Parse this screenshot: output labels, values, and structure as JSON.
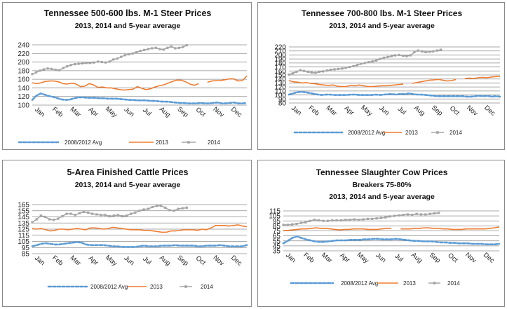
{
  "colors": {
    "avg": "#5b9bd5",
    "y2013": "#ed7d31",
    "y2014": "#a5a5a5"
  },
  "months": [
    "Jan",
    "Feb",
    "Mar",
    "Apr",
    "May",
    "Jun",
    "Jul",
    "Aug",
    "Sep",
    "Oct",
    "Nov",
    "Dec"
  ],
  "chart_data": [
    {
      "type": "line",
      "title": "Tennessee 500-600 lbs. M-1 Steer Prices",
      "subtitle": "2013, 2014 and 5-year average",
      "ylim": [
        100,
        240
      ],
      "yticks": [
        100,
        120,
        140,
        160,
        180,
        200,
        220,
        240
      ],
      "grid": true,
      "legend": "bottom",
      "legend_labels": [
        "2008/2012 Avg",
        "2013",
        "2014"
      ],
      "series": [
        {
          "name": "2008/2012 Avg",
          "style": "dashed",
          "values": [
            112,
            122,
            127,
            124,
            121,
            119,
            116,
            113,
            112,
            113,
            116,
            118,
            118,
            117,
            117,
            117,
            116,
            116,
            115,
            115,
            115,
            114,
            113,
            112,
            112,
            111,
            111,
            111,
            110,
            110,
            109,
            108,
            108,
            107,
            106,
            105,
            105,
            104,
            104,
            104,
            105,
            104,
            104,
            105,
            106,
            104,
            104,
            105,
            106,
            104,
            104,
            105
          ]
        },
        {
          "name": "2013",
          "style": "solid",
          "values": [
            152,
            150,
            152,
            155,
            156,
            156,
            154,
            150,
            149,
            151,
            149,
            143,
            144,
            150,
            147,
            141,
            142,
            140,
            140,
            138,
            136,
            135,
            136,
            137,
            143,
            139,
            136,
            138,
            142,
            145,
            147,
            151,
            155,
            158,
            158,
            154,
            149,
            146,
            150,
            null,
            153,
            156,
            157,
            157,
            159,
            161,
            161,
            156,
            157,
            168
          ]
        },
        {
          "name": "2014",
          "style": "solid",
          "values": [
            172,
            176,
            180,
            183,
            185,
            184,
            182,
            181,
            186,
            190,
            193,
            195,
            196,
            197,
            198,
            198,
            199,
            201,
            200,
            199,
            201,
            206,
            208,
            212,
            216,
            218,
            220,
            223,
            226,
            228,
            230,
            232,
            233,
            230,
            229,
            233,
            236,
            232,
            233,
            235,
            239
          ]
        }
      ]
    },
    {
      "type": "line",
      "title": "Tennessee 700-800 lbs. M-1 Steer Prices",
      "subtitle": "2013, 2014 and 5-year average",
      "ylim": [
        80,
        220
      ],
      "yticks": [
        80,
        90,
        100,
        110,
        120,
        130,
        140,
        150,
        160,
        170,
        180,
        190,
        200,
        210,
        220
      ],
      "grid": true,
      "legend": "bottom",
      "legend_labels": [
        "2008/2012 Avg",
        "2013",
        "2014"
      ],
      "series": [
        {
          "name": "2008/2012 Avg",
          "style": "dashed",
          "values": [
            101,
            104,
            107,
            108,
            107,
            105,
            103,
            101,
            100,
            101,
            101,
            100,
            100,
            100,
            100,
            101,
            101,
            100,
            100,
            100,
            100,
            101,
            100,
            101,
            102,
            102,
            101,
            103,
            102,
            104,
            102,
            101,
            101,
            100,
            99,
            98,
            97,
            97,
            97,
            97,
            97,
            97,
            97,
            96,
            96,
            97,
            98,
            97,
            98,
            96,
            97,
            96
          ]
        },
        {
          "name": "2013",
          "style": "solid",
          "values": [
            136,
            133,
            132,
            130,
            131,
            129,
            128,
            126,
            125,
            124,
            125,
            122,
            121,
            121,
            124,
            123,
            125,
            123,
            121,
            121,
            122,
            123,
            123,
            124,
            125,
            126,
            127,
            null,
            129,
            131,
            133,
            135,
            137,
            138,
            139,
            137,
            135,
            136,
            139,
            null,
            141,
            142,
            141,
            143,
            144,
            143,
            145,
            146,
            147
          ]
        },
        {
          "name": "2014",
          "style": "solid",
          "values": [
            151,
            154,
            158,
            162,
            160,
            158,
            156,
            155,
            158,
            159,
            161,
            163,
            164,
            165,
            166,
            168,
            170,
            172,
            175,
            178,
            180,
            182,
            184,
            186,
            190,
            193,
            195,
            197,
            199,
            200,
            198,
            197,
            199,
            207,
            211,
            209,
            207,
            208,
            209,
            211,
            213
          ]
        }
      ]
    },
    {
      "type": "line",
      "title": "5-Area Finished Cattle Prices",
      "subtitle": "2013, 2014 and 5-year average",
      "ylim": [
        85,
        165
      ],
      "yticks": [
        85,
        95,
        105,
        115,
        125,
        135,
        145,
        155,
        165
      ],
      "grid": true,
      "legend": "bottom",
      "legend_labels": [
        "2008/2012 Avg",
        "2013",
        "2014"
      ],
      "series": [
        {
          "name": "2008/2012 Avg",
          "style": "dashed",
          "values": [
            97,
            99,
            101,
            102,
            101,
            100,
            100,
            101,
            102,
            103,
            104,
            103,
            100,
            99,
            99,
            99,
            99,
            98,
            97,
            97,
            96,
            96,
            96,
            96,
            97,
            98,
            97,
            97,
            97,
            98,
            98,
            98,
            99,
            98,
            98,
            98,
            98,
            97,
            97,
            98,
            98,
            98,
            99,
            98,
            97,
            97,
            97,
            97,
            99
          ]
        },
        {
          "name": "2013",
          "style": "solid",
          "values": [
            126,
            125,
            126,
            124,
            122,
            123,
            125,
            125,
            124,
            125,
            126,
            125,
            124,
            127,
            127,
            126,
            125,
            126,
            128,
            127,
            126,
            125,
            124,
            124,
            124,
            123,
            123,
            122,
            121,
            120,
            120,
            122,
            122,
            123,
            124,
            124,
            124,
            123,
            125,
            124,
            127,
            131,
            131,
            131,
            130,
            131,
            132,
            130,
            129
          ]
        },
        {
          "name": "2014",
          "style": "solid",
          "values": [
            136,
            141,
            147,
            145,
            141,
            140,
            142,
            146,
            150,
            150,
            148,
            151,
            153,
            152,
            150,
            149,
            148,
            148,
            146,
            147,
            148,
            146,
            147,
            150,
            152,
            155,
            157,
            158,
            161,
            163,
            163,
            160,
            156,
            155,
            158,
            159,
            160
          ]
        }
      ]
    },
    {
      "type": "line",
      "title": "Tennessee Slaughter Cow Prices",
      "subtitle": "Breakers 75-80%",
      "subtitle2": "2013, 2014 and 5-year average",
      "ylim": [
        35,
        115
      ],
      "yticks": [
        35,
        45,
        55,
        65,
        75,
        85,
        95,
        105,
        115
      ],
      "grid": true,
      "legend": "bottom",
      "legend_labels": [
        "2008/2012 Avg",
        "2013",
        "2014"
      ],
      "series": [
        {
          "name": "2008/2012 Avg",
          "style": "dashed",
          "values": [
            50,
            55,
            61,
            64,
            61,
            58,
            56,
            54,
            53,
            53,
            54,
            55,
            56,
            56,
            56,
            57,
            57,
            57,
            58,
            58,
            59,
            59,
            58,
            58,
            58,
            59,
            58,
            57,
            56,
            55,
            55,
            54,
            54,
            54,
            53,
            52,
            52,
            51,
            51,
            50,
            50,
            50,
            49,
            49,
            49,
            48,
            48,
            48,
            49
          ]
        },
        {
          "name": "2013",
          "style": "solid",
          "values": [
            76,
            76,
            77,
            78,
            79,
            79,
            80,
            81,
            80,
            80,
            79,
            78,
            77,
            78,
            78,
            79,
            79,
            79,
            78,
            78,
            78,
            79,
            80,
            80,
            null,
            79,
            79,
            79,
            80,
            80,
            81,
            81,
            80,
            80,
            79,
            79,
            78,
            78,
            78,
            79,
            79,
            79,
            79,
            79,
            80,
            81,
            83
          ]
        },
        {
          "name": "2014",
          "style": "solid",
          "values": [
            87,
            87,
            88,
            89,
            91,
            92,
            95,
            97,
            96,
            95,
            95,
            96,
            96,
            96,
            97,
            97,
            98,
            97,
            98,
            99,
            99,
            100,
            101,
            102,
            104,
            105,
            106,
            107,
            108,
            107,
            109,
            108,
            108,
            109,
            110,
            111
          ]
        }
      ]
    }
  ]
}
